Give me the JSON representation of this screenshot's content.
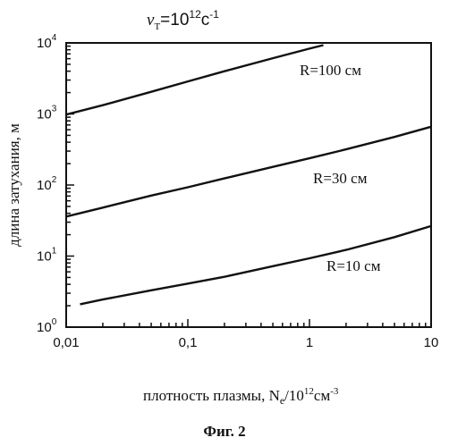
{
  "chart_data": {
    "type": "line",
    "header_formula": {
      "symbol": "ν",
      "subscript": "T",
      "equals": "=10",
      "sup": "12",
      "unit": "c",
      "unit_sup": "-1"
    },
    "xlabel": {
      "prefix": "плотность плазмы, N",
      "sub": "e",
      "mid": "/10",
      "sup": "12",
      "unit": "см",
      "unit_sup": "-3"
    },
    "ylabel": "длина затухания, м",
    "caption": "Фиг. 2",
    "xscale": "log",
    "yscale": "log",
    "xlim": [
      0.01,
      10
    ],
    "ylim": [
      1,
      10000
    ],
    "x_tick_labels": [
      "0,01",
      "0,1",
      "1",
      "10"
    ],
    "x_ticks": [
      0.01,
      0.1,
      1,
      10
    ],
    "y_ticks": [
      1,
      10,
      100,
      1000,
      10000
    ],
    "y_tick_labels": [
      {
        "base": "10",
        "exp": "0"
      },
      {
        "base": "10",
        "exp": "1"
      },
      {
        "base": "10",
        "exp": "2"
      },
      {
        "base": "10",
        "exp": "3"
      },
      {
        "base": "10",
        "exp": "4"
      }
    ],
    "grid": false,
    "series": [
      {
        "name": "R=100 см",
        "x": [
          0.01,
          0.02,
          0.05,
          0.1,
          0.2,
          0.5,
          1.0,
          1.3
        ],
        "y": [
          980,
          1330,
          2050,
          2870,
          3990,
          6100,
          8300,
          9300
        ]
      },
      {
        "name": "R=30 см",
        "x": [
          0.01,
          0.02,
          0.05,
          0.1,
          0.2,
          0.5,
          1,
          2,
          5,
          10
        ],
        "y": [
          36,
          48,
          71,
          93,
          124,
          180,
          238,
          318,
          475,
          660
        ]
      },
      {
        "name": "R=10 см",
        "x": [
          0.013,
          0.02,
          0.05,
          0.1,
          0.2,
          0.5,
          1,
          2,
          5,
          10
        ],
        "y": [
          2.1,
          2.45,
          3.3,
          4.1,
          5.1,
          7.2,
          9.3,
          12.2,
          18.5,
          26.5
        ]
      }
    ]
  }
}
